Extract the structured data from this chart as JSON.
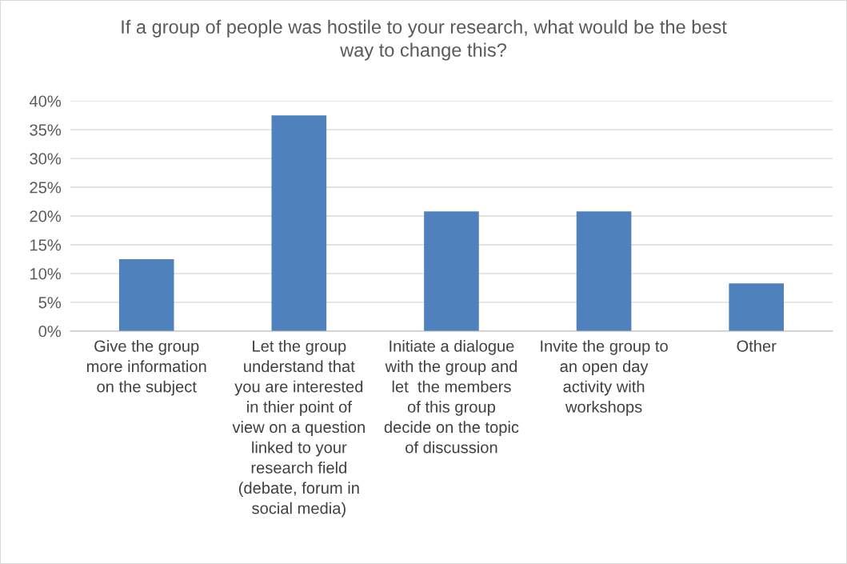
{
  "chart_data": {
    "type": "bar",
    "title": "If a group of people was hostile to your research, what would be the best\nway to change this?",
    "categories": [
      "Give the group\nmore information\non the subject",
      "Let the group\nunderstand that\nyou are interested\nin thier point of\nview on a question\nlinked to your\nresearch field\n(debate, forum in\nsocial media)",
      "Initiate a dialogue\nwith the group and\nlet  the members\nof this group\ndecide on the topic\nof discussion",
      "Invite the group to\nan open day\nactivity with\nworkshops",
      "Other"
    ],
    "values": [
      12.5,
      37.5,
      20.8,
      20.8,
      8.3
    ],
    "color": "#4f81bd",
    "ylim": [
      0,
      40
    ],
    "yticks": [
      {
        "value": 0,
        "label": "0%"
      },
      {
        "value": 5,
        "label": "5%"
      },
      {
        "value": 10,
        "label": "10%"
      },
      {
        "value": 15,
        "label": "15%"
      },
      {
        "value": 20,
        "label": "20%"
      },
      {
        "value": 25,
        "label": "25%"
      },
      {
        "value": 30,
        "label": "30%"
      },
      {
        "value": 35,
        "label": "35%"
      },
      {
        "value": 40,
        "label": "40%"
      }
    ],
    "grid": "y"
  }
}
